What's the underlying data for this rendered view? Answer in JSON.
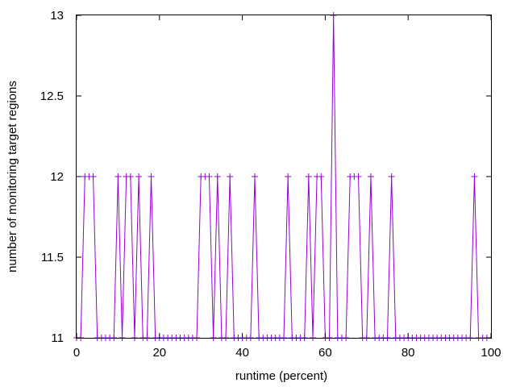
{
  "chart_data": {
    "type": "line",
    "xlabel": "runtime (percent)",
    "ylabel": "number of monitoring target regions",
    "xlim": [
      0,
      100
    ],
    "ylim": [
      11,
      13
    ],
    "x_ticks": [
      0,
      20,
      40,
      60,
      80,
      100
    ],
    "y_ticks": [
      11,
      11.5,
      12,
      12.5,
      13
    ],
    "x_tick_labels": [
      "0",
      "20",
      "40",
      "60",
      "80",
      "100"
    ],
    "y_tick_labels": [
      "11",
      "11.5",
      "12",
      "12.5",
      "13"
    ],
    "grid": false,
    "legend": "none",
    "series": [
      {
        "color": "#9400d3",
        "marker": "plus",
        "x": [
          0,
          1,
          2,
          3,
          4,
          5,
          6,
          7,
          8,
          9,
          10,
          11,
          12,
          13,
          14,
          15,
          16,
          17,
          18,
          19,
          20,
          21,
          22,
          23,
          24,
          25,
          26,
          27,
          28,
          29,
          30,
          31,
          32,
          33,
          34,
          35,
          36,
          37,
          38,
          39,
          40,
          41,
          42,
          43,
          44,
          45,
          46,
          47,
          48,
          49,
          50,
          51,
          52,
          53,
          54,
          55,
          56,
          57,
          58,
          59,
          60,
          61,
          62,
          63,
          64,
          65,
          66,
          67,
          68,
          69,
          70,
          71,
          72,
          73,
          74,
          75,
          76,
          77,
          78,
          79,
          80,
          81,
          82,
          83,
          84,
          85,
          86,
          87,
          88,
          89,
          90,
          91,
          92,
          93,
          94,
          95,
          96,
          97,
          98,
          99
        ],
        "y": [
          11,
          11,
          12,
          12,
          12,
          11,
          11,
          11,
          11,
          11,
          12,
          11,
          12,
          12,
          11,
          12,
          11,
          11,
          12,
          11,
          11,
          11,
          11,
          11,
          11,
          11,
          11,
          11,
          11,
          11,
          12,
          12,
          12,
          11,
          12,
          11,
          11,
          12,
          11,
          11,
          11,
          11,
          11,
          12,
          11,
          11,
          11,
          11,
          11,
          11,
          11,
          12,
          11,
          11,
          11,
          11,
          12,
          11,
          12,
          12,
          11,
          11,
          13,
          11,
          11,
          11,
          12,
          12,
          12,
          11,
          11,
          12,
          11,
          11,
          11,
          11,
          12,
          11,
          11,
          11,
          11,
          11,
          11,
          11,
          11,
          11,
          11,
          11,
          11,
          11,
          11,
          11,
          11,
          11,
          11,
          11,
          12,
          11,
          11,
          11
        ]
      }
    ]
  }
}
